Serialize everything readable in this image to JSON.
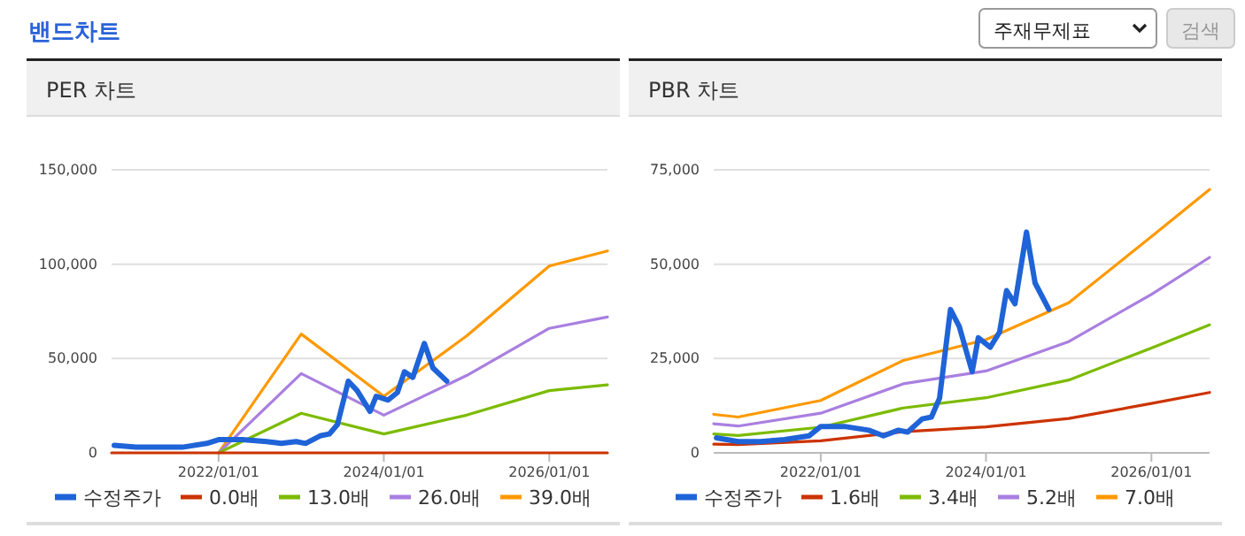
{
  "chart_data": [
    {
      "type": "other",
      "title": "밴드차트",
      "annotations": [
        "주재무제표",
        "검색"
      ]
    },
    {
      "type": "line",
      "title": "PER 차트",
      "xlim": [
        "2020-09-15",
        "2026-09-15"
      ],
      "xticks": [
        {
          "value": "2022-01-01",
          "label": "2022/01/01"
        },
        {
          "value": "2024-01-01",
          "label": "2024/01/01"
        },
        {
          "value": "2026-01-01",
          "label": "2026/01/01"
        }
      ],
      "ylim": [
        0,
        150000
      ],
      "yticks": [
        {
          "value": 0,
          "label": "0"
        },
        {
          "value": 50000,
          "label": "50,000"
        },
        {
          "value": 100000,
          "label": "100,000"
        },
        {
          "value": 150000,
          "label": "150,000"
        }
      ],
      "grid": "y",
      "legend": "bottom",
      "marker": "none",
      "line_style": "solid",
      "series": [
        {
          "name": "수정주가",
          "color": "#1f63d8",
          "x": [
            "2020-09-27",
            "2021-01-01",
            "2021-04-10",
            "2021-07-25",
            "2021-11-10",
            "2022-01-01",
            "2022-04-15",
            "2022-08-01",
            "2022-10-05",
            "2022-12-10",
            "2023-01-20",
            "2023-03-25",
            "2023-05-05",
            "2023-06-10",
            "2023-07-28",
            "2023-09-05",
            "2023-11-01",
            "2023-11-28",
            "2024-01-20",
            "2024-03-01",
            "2024-04-01",
            "2024-05-08",
            "2024-06-28",
            "2024-08-05",
            "2024-10-05"
          ],
          "values": [
            4000,
            3000,
            3000,
            3000,
            5000,
            7000,
            7000,
            6000,
            5000,
            6000,
            5000,
            9000,
            10000,
            15000,
            38000,
            33000,
            22000,
            30000,
            28000,
            32000,
            43000,
            40000,
            58000,
            45000,
            38000
          ]
        },
        {
          "name": "0.0배",
          "color": "#cc3300",
          "x": [
            "2020-09-15",
            "2021-01-01",
            "2022-01-01",
            "2023-01-01",
            "2024-01-01",
            "2025-01-01",
            "2026-01-01",
            "2026-09-15"
          ],
          "values": [
            0,
            0,
            0,
            0,
            0,
            0,
            0,
            0
          ]
        },
        {
          "name": "13.0배",
          "color": "#7cbb00",
          "x": [
            "2022-01-01",
            "2023-01-01",
            "2024-01-01",
            "2025-01-01",
            "2026-01-01",
            "2026-09-15"
          ],
          "values": [
            0,
            21000,
            10000,
            20000,
            33000,
            36000
          ]
        },
        {
          "name": "26.0배",
          "color": "#a97fe0",
          "x": [
            "2022-01-01",
            "2023-01-01",
            "2024-01-01",
            "2025-01-01",
            "2026-01-01",
            "2026-09-15"
          ],
          "values": [
            0,
            42000,
            20000,
            41000,
            66000,
            72000
          ]
        },
        {
          "name": "39.0배",
          "color": "#ff9900",
          "x": [
            "2022-01-01",
            "2023-01-01",
            "2024-01-01",
            "2025-01-01",
            "2026-01-01",
            "2026-09-15"
          ],
          "values": [
            0,
            63000,
            30000,
            62000,
            99000,
            107000
          ]
        }
      ]
    },
    {
      "type": "line",
      "title": "PBR 차트",
      "xlim": [
        "2020-09-15",
        "2026-09-15"
      ],
      "xticks": [
        {
          "value": "2022-01-01",
          "label": "2022/01/01"
        },
        {
          "value": "2024-01-01",
          "label": "2024/01/01"
        },
        {
          "value": "2026-01-01",
          "label": "2026/01/01"
        }
      ],
      "ylim": [
        0,
        75000
      ],
      "yticks": [
        {
          "value": 0,
          "label": "0"
        },
        {
          "value": 25000,
          "label": "25,000"
        },
        {
          "value": 50000,
          "label": "50,000"
        },
        {
          "value": 75000,
          "label": "75,000"
        }
      ],
      "grid": "y",
      "legend": "bottom",
      "marker": "none",
      "line_style": "solid",
      "series": [
        {
          "name": "수정주가",
          "color": "#1f63d8",
          "x": [
            "2020-09-27",
            "2021-01-01",
            "2021-04-10",
            "2021-07-25",
            "2021-11-10",
            "2022-01-01",
            "2022-04-15",
            "2022-08-01",
            "2022-10-05",
            "2022-12-10",
            "2023-01-20",
            "2023-03-25",
            "2023-05-05",
            "2023-06-10",
            "2023-07-28",
            "2023-09-05",
            "2023-11-01",
            "2023-11-28",
            "2024-01-20",
            "2024-03-01",
            "2024-04-01",
            "2024-05-08",
            "2024-06-28",
            "2024-08-05",
            "2024-10-05"
          ],
          "values": [
            4000,
            3000,
            3000,
            3500,
            4500,
            7000,
            7000,
            6000,
            4500,
            6000,
            5500,
            9000,
            9500,
            14500,
            38000,
            33500,
            21500,
            30500,
            28000,
            32000,
            43000,
            39500,
            58500,
            45000,
            38000
          ]
        },
        {
          "name": "1.6배",
          "color": "#cc3300",
          "x": [
            "2020-09-15",
            "2021-01-01",
            "2022-01-01",
            "2023-01-01",
            "2024-01-01",
            "2025-01-01",
            "2026-01-01",
            "2026-09-15"
          ],
          "values": [
            2300,
            2200,
            3200,
            5600,
            6900,
            9100,
            13100,
            16000
          ]
        },
        {
          "name": "3.4배",
          "color": "#7cbb00",
          "x": [
            "2020-09-15",
            "2021-01-01",
            "2022-01-01",
            "2023-01-01",
            "2024-01-01",
            "2025-01-01",
            "2026-01-01",
            "2026-09-15"
          ],
          "values": [
            5000,
            4600,
            6800,
            11900,
            14600,
            19300,
            27800,
            33900
          ]
        },
        {
          "name": "5.2배",
          "color": "#a97fe0",
          "x": [
            "2020-09-15",
            "2021-01-01",
            "2022-01-01",
            "2023-01-01",
            "2024-01-01",
            "2025-01-01",
            "2026-01-01",
            "2026-09-15"
          ],
          "values": [
            7700,
            7100,
            10500,
            18300,
            21700,
            29500,
            42000,
            51800
          ]
        },
        {
          "name": "7.0배",
          "color": "#ff9900",
          "x": [
            "2020-09-15",
            "2021-01-01",
            "2022-01-01",
            "2023-01-01",
            "2024-01-01",
            "2025-01-01",
            "2026-01-01",
            "2026-09-15"
          ],
          "values": [
            10200,
            9500,
            13900,
            24500,
            30000,
            39800,
            57300,
            69800
          ]
        }
      ]
    }
  ]
}
